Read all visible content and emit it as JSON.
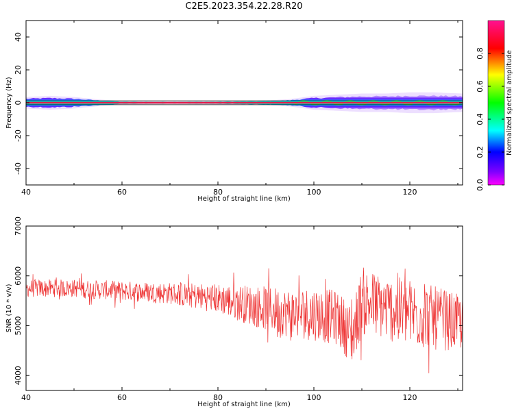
{
  "title": "C2E5.2023.354.22.28.R20",
  "colors": {
    "snr_line": "#ee3333",
    "frequency_trace": "#e6194b",
    "axes": "#000000"
  },
  "chart_data": [
    {
      "type": "heatmap",
      "id": "spectrogram",
      "xlabel": "Height of straight line (km)",
      "ylabel": "Frequency (Hz)",
      "xlim": [
        40,
        131
      ],
      "ylim": [
        -50,
        50
      ],
      "x_ticks": [
        40,
        60,
        80,
        100,
        120
      ],
      "y_ticks": [
        -40,
        -20,
        0,
        20,
        40
      ],
      "x_tick_labels": [
        "40",
        "60",
        "80",
        "100",
        "120"
      ],
      "y_tick_labels": [
        "-40",
        "-20",
        "0",
        "20",
        "40"
      ],
      "colormap": "hsv",
      "colorbar": {
        "label": "Normalized spectral amplitude",
        "range": [
          0,
          1
        ],
        "ticks": [
          0.0,
          0.2,
          0.4,
          0.6,
          0.8
        ],
        "tick_labels": [
          "0.0",
          "0.2",
          "0.4",
          "0.6",
          "0.8"
        ]
      },
      "spread_envelope": {
        "x": [
          40,
          45,
          50,
          55,
          60,
          70,
          80,
          90,
          95,
          100,
          105,
          110,
          115,
          120,
          125,
          131
        ],
        "halfwidth_hz": [
          2.5,
          3,
          2.5,
          1.5,
          0.7,
          0.6,
          0.7,
          1,
          1.6,
          3,
          3.5,
          4,
          4,
          4.5,
          4.5,
          4
        ]
      },
      "center_frequency_hz": 0,
      "grid": false
    },
    {
      "type": "line",
      "id": "snr",
      "xlabel": "Height of straight line (km)",
      "ylabel": "SNR (10 * v/v)",
      "xlim": [
        40,
        131
      ],
      "ylim": [
        3700,
        7000
      ],
      "x_ticks": [
        40,
        60,
        80,
        100,
        120
      ],
      "y_ticks": [
        4000,
        5000,
        6000,
        7000
      ],
      "x_tick_labels": [
        "40",
        "60",
        "80",
        "100",
        "120"
      ],
      "y_tick_labels": [
        "4000",
        "5000",
        "6000",
        "7000"
      ],
      "series": [
        {
          "trend_x": [
            40,
            50,
            60,
            70,
            80,
            85,
            90,
            95,
            100,
            105,
            108,
            110,
            115,
            120,
            125,
            131
          ],
          "trend_y": [
            5750,
            5750,
            5700,
            5650,
            5550,
            5450,
            5350,
            5250,
            5250,
            5150,
            4800,
            5500,
            5350,
            5250,
            5150,
            5050
          ],
          "noise_amplitude": [
            180,
            180,
            200,
            220,
            300,
            380,
            450,
            500,
            550,
            550,
            600,
            700,
            650,
            700,
            650,
            550
          ]
        }
      ],
      "grid": false
    }
  ]
}
